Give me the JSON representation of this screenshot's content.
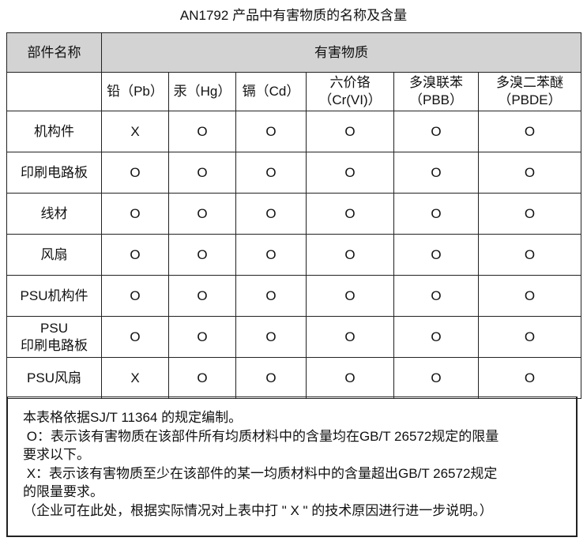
{
  "title": "AN1792 产品中有害物质的名称及含量",
  "header": {
    "part_name": "部件名称",
    "hazardous": "有害物质"
  },
  "substances": [
    {
      "line1": "铅（Pb）",
      "line2": ""
    },
    {
      "line1": "汞（Hg）",
      "line2": ""
    },
    {
      "line1": "镉（Cd）",
      "line2": ""
    },
    {
      "line1": "六价铬",
      "line2": "（Cr(VI)）"
    },
    {
      "line1": "多溴联苯",
      "line2": "（PBB）"
    },
    {
      "line1": "多溴二苯醚",
      "line2": "（PBDE）"
    }
  ],
  "rows": [
    {
      "part": "机构件",
      "part2": "",
      "values": [
        "X",
        "O",
        "O",
        "O",
        "O",
        "O"
      ]
    },
    {
      "part": "印刷电路板",
      "part2": "",
      "values": [
        "O",
        "O",
        "O",
        "O",
        "O",
        "O"
      ]
    },
    {
      "part": "线材",
      "part2": "",
      "values": [
        "O",
        "O",
        "O",
        "O",
        "O",
        "O"
      ]
    },
    {
      "part": "风扇",
      "part2": "",
      "values": [
        "O",
        "O",
        "O",
        "O",
        "O",
        "O"
      ]
    },
    {
      "part": "PSU机构件",
      "part2": "",
      "values": [
        "O",
        "O",
        "O",
        "O",
        "O",
        "O"
      ]
    },
    {
      "part": "PSU",
      "part2": "印刷电路板",
      "values": [
        "O",
        "O",
        "O",
        "O",
        "O",
        "O"
      ]
    },
    {
      "part": "PSU风扇",
      "part2": "",
      "values": [
        "X",
        "O",
        "O",
        "O",
        "O",
        "O"
      ]
    }
  ],
  "notes": [
    "本表格依据SJ/T 11364 的规定编制。",
    " O：表示该有害物质在该部件所有均质材料中的含量均在GB/T 26572规定的限量",
    "要求以下。",
    " X：表示该有害物质至少在该部件的某一均质材料中的含量超出GB/T 26572规定",
    "的限量要求。",
    "（企业可在此处，根据实际情况对上表中打 \" X \" 的技术原因进行进一步说明。）"
  ]
}
